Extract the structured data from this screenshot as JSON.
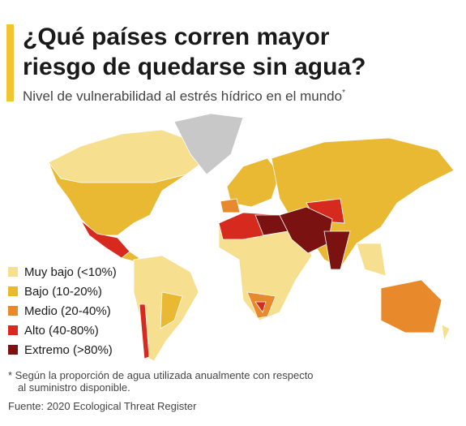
{
  "header": {
    "title": [
      "¿Qué países corren mayor",
      "riesgo de quedarse sin agua?"
    ],
    "subtitle": "Nivel de vulnerabilidad al estrés hídrico en el mundo",
    "subtitle_mark": "*"
  },
  "legend": [
    {
      "label": "Muy bajo (<10%)",
      "color": "#f6df8e"
    },
    {
      "label": "Bajo (10-20%)",
      "color": "#e9b934"
    },
    {
      "label": "Medio (20-40%)",
      "color": "#e88a2b"
    },
    {
      "label": "Alto (40-80%)",
      "color": "#d62a1e"
    },
    {
      "label": "Extremo (>80%)",
      "color": "#7b1212"
    }
  ],
  "footnote": [
    "* Según la proporción de agua utilizada anualmente con respecto",
    "al suministro disponible."
  ],
  "source": "Fuente: 2020 Ecological Threat Register"
}
